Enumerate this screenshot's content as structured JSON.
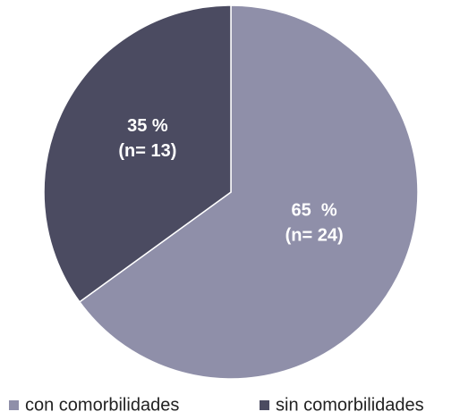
{
  "chart_data": {
    "type": "pie",
    "categories": [
      "con comorbilidades",
      "sin comorbilidades"
    ],
    "values": [
      65,
      35
    ],
    "value_labels": [
      "65  %",
      "35 %"
    ],
    "count_labels": [
      "(n= 24)",
      "(n= 13)"
    ],
    "colors": [
      "#8f8fa9",
      "#4b4b61"
    ],
    "legend": "bottom"
  }
}
